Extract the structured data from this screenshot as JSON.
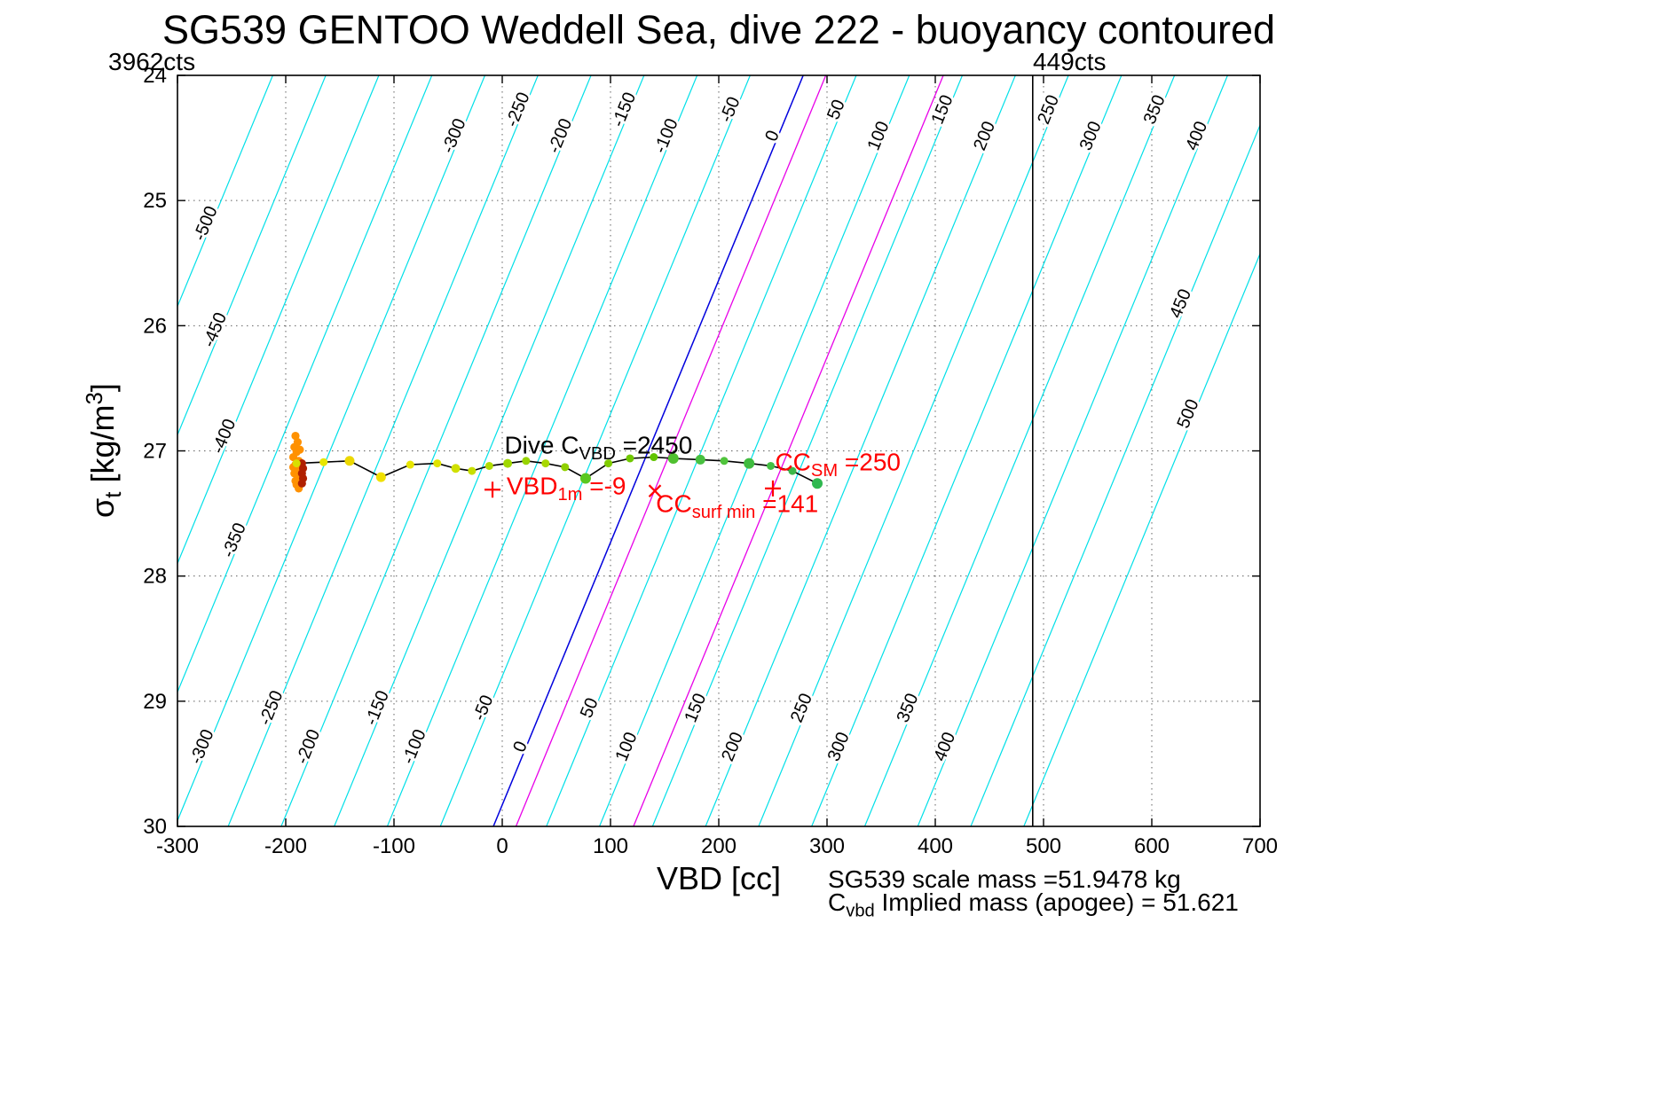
{
  "chart_data": {
    "type": "scatter",
    "title": "SG539 GENTOO Weddell Sea, dive 222 - buoyancy contoured",
    "xlabel": "VBD [cc]",
    "ylabel": "sigma_t [kg/m^3]",
    "ylabel_parts": {
      "sym": "σ",
      "sub": "t",
      "mid": " [kg/m",
      "sup": "3",
      "end": "]"
    },
    "counts_labels": {
      "left": "3962cts",
      "right": "449cts"
    },
    "xlim": [
      -300,
      700
    ],
    "ylim": [
      24,
      30
    ],
    "y_axis_reversed": true,
    "grid": true,
    "x_ticks": [
      -300,
      -200,
      -100,
      0,
      100,
      200,
      300,
      400,
      500,
      600,
      700
    ],
    "y_ticks": [
      24,
      25,
      26,
      27,
      28,
      29,
      30
    ],
    "vbd_limit_line_x": 490,
    "contours": {
      "units": "buoyancy (g)",
      "levels": [
        -500,
        -450,
        -400,
        -350,
        -300,
        -250,
        -200,
        -150,
        -100,
        -50,
        0,
        50,
        100,
        150,
        200,
        250,
        300,
        350,
        400,
        450,
        500
      ],
      "line_color": "#00e0e8",
      "zero_level_color": "#0000dd",
      "magenta_color": "#e800e8",
      "x_at_top_for_zero": 278,
      "cc_per_unit": 0.98,
      "slope_cc_per_sigma": -47.7,
      "magenta_lines_through": [
        {
          "x": 141,
          "sigma": 27.31
        },
        {
          "x": 250,
          "sigma": 27.3
        }
      ],
      "top_label_levels": [
        -300,
        -250,
        -200,
        -150,
        -100,
        -50,
        0,
        50,
        100,
        150,
        200,
        250,
        300,
        350,
        400
      ],
      "bottom_label_levels": [
        -300,
        -250,
        -200,
        -150,
        -100,
        -50,
        0,
        50,
        100,
        150,
        200,
        250,
        300,
        350,
        400
      ],
      "left_labels": [
        {
          "level": -500,
          "sigma": 25.2
        },
        {
          "level": -450,
          "sigma": 26.05
        },
        {
          "level": -400,
          "sigma": 26.9
        },
        {
          "level": -350,
          "sigma": 27.73
        }
      ],
      "right_labels": [
        {
          "level": 450,
          "sigma": 25.84
        },
        {
          "level": 500,
          "sigma": 26.72
        }
      ]
    },
    "trajectory": {
      "line_color": "#000000",
      "points": [
        {
          "x": -190,
          "s": 27.1,
          "c": "#d8e000",
          "r": 4.5
        },
        {
          "x": -165,
          "s": 27.09,
          "c": "#e8e600",
          "r": 4.5
        },
        {
          "x": -141,
          "s": 27.08,
          "c": "#ecd800",
          "r": 5.5
        },
        {
          "x": -112,
          "s": 27.21,
          "c": "#f0e000",
          "r": 5.5
        },
        {
          "x": -85,
          "s": 27.11,
          "c": "#e8e600",
          "r": 4.5
        },
        {
          "x": -60,
          "s": 27.1,
          "c": "#e0e400",
          "r": 4.5
        },
        {
          "x": -43,
          "s": 27.14,
          "c": "#d0e000",
          "r": 5
        },
        {
          "x": -28,
          "s": 27.16,
          "c": "#c8e000",
          "r": 4.5
        },
        {
          "x": -12,
          "s": 27.12,
          "c": "#b0dc00",
          "r": 4.5
        },
        {
          "x": 5,
          "s": 27.1,
          "c": "#a0d800",
          "r": 5
        },
        {
          "x": 22,
          "s": 27.08,
          "c": "#98d400",
          "r": 4.5
        },
        {
          "x": 40,
          "s": 27.1,
          "c": "#a8d800",
          "r": 4.5
        },
        {
          "x": 58,
          "s": 27.13,
          "c": "#90d000",
          "r": 4.5
        },
        {
          "x": 77,
          "s": 27.22,
          "c": "#58c820",
          "r": 6
        },
        {
          "x": 98,
          "s": 27.1,
          "c": "#80cc00",
          "r": 4.5
        },
        {
          "x": 118,
          "s": 27.06,
          "c": "#70c800",
          "r": 4.5
        },
        {
          "x": 140,
          "s": 27.05,
          "c": "#60c400",
          "r": 4.5
        },
        {
          "x": 158,
          "s": 27.06,
          "c": "#50c030",
          "r": 6
        },
        {
          "x": 183,
          "s": 27.07,
          "c": "#48c040",
          "r": 5.5
        },
        {
          "x": 205,
          "s": 27.08,
          "c": "#50c43c",
          "r": 4.5
        },
        {
          "x": 228,
          "s": 27.1,
          "c": "#40bc40",
          "r": 6
        },
        {
          "x": 248,
          "s": 27.12,
          "c": "#44c044",
          "r": 4.5
        },
        {
          "x": 268,
          "s": 27.16,
          "c": "#3cb848",
          "r": 4.5
        },
        {
          "x": 291,
          "s": 27.26,
          "c": "#30b850",
          "r": 6
        }
      ]
    },
    "climb_cluster": {
      "color": "#ff9100",
      "dark_color": "#b02000",
      "points": [
        {
          "x": -191,
          "s": 26.88
        },
        {
          "x": -189,
          "s": 26.93
        },
        {
          "x": -192,
          "s": 26.97
        },
        {
          "x": -190,
          "s": 27.01
        },
        {
          "x": -193,
          "s": 27.05
        },
        {
          "x": -188,
          "s": 27.08
        },
        {
          "x": -191,
          "s": 27.11
        },
        {
          "x": -190,
          "s": 27.15
        },
        {
          "x": -192,
          "s": 27.18
        },
        {
          "x": -189,
          "s": 27.21
        },
        {
          "x": -191,
          "s": 27.24
        },
        {
          "x": -190,
          "s": 27.27
        },
        {
          "x": -188,
          "s": 27.3
        },
        {
          "x": -193,
          "s": 27.13
        },
        {
          "x": -187,
          "s": 26.99
        }
      ],
      "dark_points": [
        {
          "x": -185,
          "s": 27.1
        },
        {
          "x": -184,
          "s": 27.14
        },
        {
          "x": -185,
          "s": 27.18
        },
        {
          "x": -184,
          "s": 27.22
        },
        {
          "x": -185,
          "s": 27.26
        }
      ]
    },
    "markers": {
      "color": "#ff0000",
      "items": [
        {
          "shape": "plus",
          "x": -9,
          "sigma": 27.31
        },
        {
          "shape": "x",
          "x": 141,
          "sigma": 27.32
        },
        {
          "shape": "plus",
          "x": 250,
          "sigma": 27.3
        }
      ]
    },
    "annotations": [
      {
        "id": "dive-cvbd",
        "pre": "Dive C",
        "sub": "VBD",
        "post": " =2450",
        "x": 2,
        "sigma": 26.98,
        "color": "#000000"
      },
      {
        "id": "vbd-1m",
        "pre": "VBD",
        "sub": "1m",
        "post": " =-9",
        "x": 4,
        "sigma": 27.31,
        "color": "#ff0000"
      },
      {
        "id": "cc-surf-min",
        "pre": "CC",
        "sub": "surf min",
        "post": " =141",
        "x": 142,
        "sigma": 27.45,
        "color": "#ff0000"
      },
      {
        "id": "cc-sm",
        "pre": "CC",
        "sub": "SM",
        "post": " =250",
        "x": 252,
        "sigma": 27.12,
        "color": "#ff0000"
      }
    ]
  },
  "footer": {
    "line1": "SG539 scale mass =51.9478 kg",
    "line2_pre": "C",
    "line2_sub": "vbd",
    "line2_post": " Implied mass (apogee) = 51.621"
  }
}
